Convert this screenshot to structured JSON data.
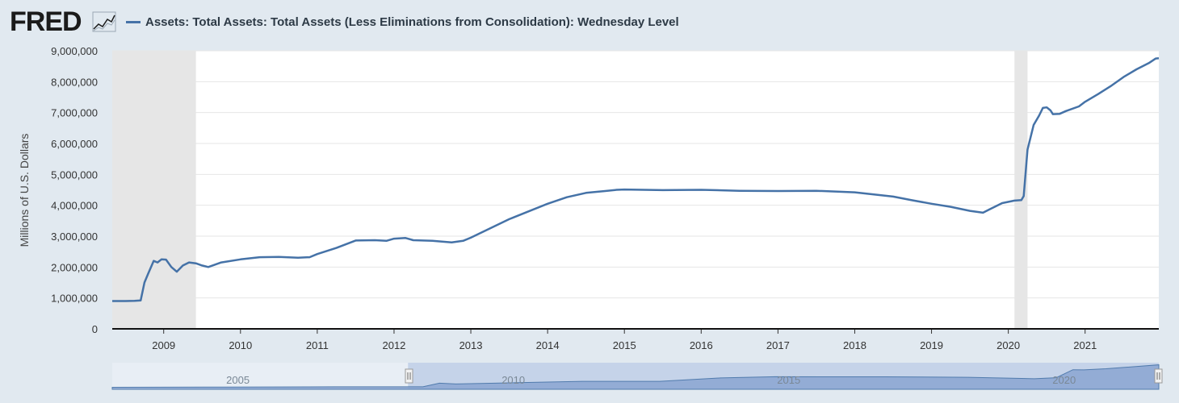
{
  "header": {
    "logo_text": "FRED",
    "logo_icon": "line-chart-icon",
    "legend_label": "Assets: Total Assets: Total Assets (Less Eliminations from Consolidation): Wednesday Level"
  },
  "colors": {
    "series": "#4572a7",
    "recession": "#e6e6e6",
    "background": "#e1e9f0",
    "plot_bg": "#ffffff",
    "grid": "#e6e6e6",
    "navigator_fill": "#8ea8d3"
  },
  "chart_data": {
    "type": "line",
    "title": "Assets: Total Assets: Total Assets (Less Eliminations from Consolidation): Wednesday Level",
    "xlabel": "",
    "ylabel": "Millions of U.S. Dollars",
    "xlim": [
      2008.33,
      2021.96
    ],
    "ylim": [
      0,
      9000000
    ],
    "y_ticks": [
      0,
      1000000,
      2000000,
      3000000,
      4000000,
      5000000,
      6000000,
      7000000,
      8000000,
      9000000
    ],
    "y_tick_labels": [
      "0",
      "1,000,000",
      "2,000,000",
      "3,000,000",
      "4,000,000",
      "5,000,000",
      "6,000,000",
      "7,000,000",
      "8,000,000",
      "9,000,000"
    ],
    "x_ticks": [
      2009,
      2010,
      2011,
      2012,
      2013,
      2014,
      2015,
      2016,
      2017,
      2018,
      2019,
      2020,
      2021
    ],
    "x_tick_labels": [
      "2009",
      "2010",
      "2011",
      "2012",
      "2013",
      "2014",
      "2015",
      "2016",
      "2017",
      "2018",
      "2019",
      "2020",
      "2021"
    ],
    "grid": true,
    "recessions": [
      [
        2008.33,
        2009.42
      ],
      [
        2020.08,
        2020.25
      ]
    ],
    "series": [
      {
        "name": "Assets: Total Assets: Total Assets (Less Eliminations from Consolidation): Wednesday Level",
        "points": [
          [
            2008.33,
            900000
          ],
          [
            2008.5,
            900000
          ],
          [
            2008.62,
            905000
          ],
          [
            2008.7,
            920000
          ],
          [
            2008.75,
            1500000
          ],
          [
            2008.8,
            1800000
          ],
          [
            2008.87,
            2200000
          ],
          [
            2008.92,
            2150000
          ],
          [
            2008.97,
            2250000
          ],
          [
            2009.03,
            2240000
          ],
          [
            2009.1,
            2000000
          ],
          [
            2009.17,
            1850000
          ],
          [
            2009.25,
            2050000
          ],
          [
            2009.33,
            2150000
          ],
          [
            2009.42,
            2120000
          ],
          [
            2009.5,
            2050000
          ],
          [
            2009.58,
            2000000
          ],
          [
            2009.75,
            2150000
          ],
          [
            2010.0,
            2250000
          ],
          [
            2010.25,
            2320000
          ],
          [
            2010.5,
            2330000
          ],
          [
            2010.75,
            2300000
          ],
          [
            2010.9,
            2320000
          ],
          [
            2011.0,
            2420000
          ],
          [
            2011.25,
            2620000
          ],
          [
            2011.5,
            2860000
          ],
          [
            2011.75,
            2870000
          ],
          [
            2011.9,
            2850000
          ],
          [
            2012.0,
            2920000
          ],
          [
            2012.15,
            2940000
          ],
          [
            2012.25,
            2870000
          ],
          [
            2012.5,
            2850000
          ],
          [
            2012.75,
            2800000
          ],
          [
            2012.9,
            2850000
          ],
          [
            2013.0,
            2950000
          ],
          [
            2013.25,
            3250000
          ],
          [
            2013.5,
            3550000
          ],
          [
            2013.75,
            3800000
          ],
          [
            2014.0,
            4050000
          ],
          [
            2014.25,
            4260000
          ],
          [
            2014.5,
            4400000
          ],
          [
            2014.75,
            4460000
          ],
          [
            2014.9,
            4500000
          ],
          [
            2015.0,
            4510000
          ],
          [
            2015.5,
            4490000
          ],
          [
            2016.0,
            4500000
          ],
          [
            2016.5,
            4470000
          ],
          [
            2017.0,
            4460000
          ],
          [
            2017.5,
            4470000
          ],
          [
            2018.0,
            4420000
          ],
          [
            2018.5,
            4280000
          ],
          [
            2018.75,
            4160000
          ],
          [
            2019.0,
            4050000
          ],
          [
            2019.25,
            3950000
          ],
          [
            2019.5,
            3820000
          ],
          [
            2019.67,
            3760000
          ],
          [
            2019.75,
            3860000
          ],
          [
            2019.92,
            4070000
          ],
          [
            2020.08,
            4150000
          ],
          [
            2020.17,
            4170000
          ],
          [
            2020.2,
            4300000
          ],
          [
            2020.25,
            5800000
          ],
          [
            2020.33,
            6600000
          ],
          [
            2020.4,
            6900000
          ],
          [
            2020.45,
            7150000
          ],
          [
            2020.5,
            7170000
          ],
          [
            2020.55,
            7070000
          ],
          [
            2020.58,
            6950000
          ],
          [
            2020.67,
            6960000
          ],
          [
            2020.75,
            7050000
          ],
          [
            2020.92,
            7200000
          ],
          [
            2021.0,
            7350000
          ],
          [
            2021.17,
            7600000
          ],
          [
            2021.33,
            7850000
          ],
          [
            2021.5,
            8150000
          ],
          [
            2021.67,
            8400000
          ],
          [
            2021.83,
            8600000
          ],
          [
            2021.92,
            8750000
          ],
          [
            2021.96,
            8760000
          ]
        ]
      }
    ]
  },
  "navigator": {
    "labels": [
      "2005",
      "2010",
      "2015",
      "2020"
    ],
    "label_years": [
      2005,
      2010,
      2015,
      2020
    ],
    "range": [
      2002.96,
      2021.96
    ],
    "selected": [
      2008.33,
      2021.96
    ],
    "ylim": [
      0,
      9500000
    ],
    "points": [
      [
        2002.96,
        720000
      ],
      [
        2005,
        800000
      ],
      [
        2007,
        880000
      ],
      [
        2008.6,
        900000
      ],
      [
        2008.9,
        2200000
      ],
      [
        2009.2,
        1900000
      ],
      [
        2010,
        2250000
      ],
      [
        2011.5,
        2850000
      ],
      [
        2012.9,
        2850000
      ],
      [
        2014,
        4050000
      ],
      [
        2015,
        4500000
      ],
      [
        2017,
        4460000
      ],
      [
        2018.5,
        4280000
      ],
      [
        2019.7,
        3760000
      ],
      [
        2020.1,
        4150000
      ],
      [
        2020.4,
        7000000
      ],
      [
        2020.6,
        6950000
      ],
      [
        2021,
        7350000
      ],
      [
        2021.96,
        8760000
      ]
    ]
  }
}
